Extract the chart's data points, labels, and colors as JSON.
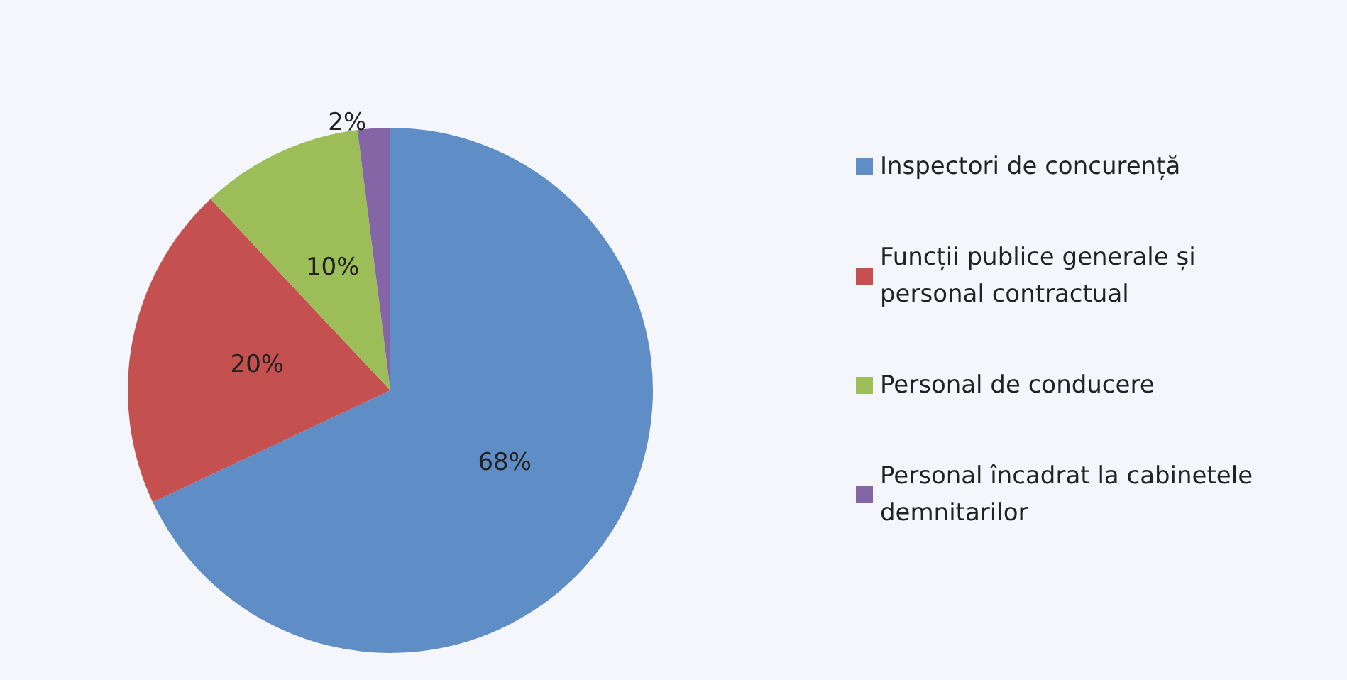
{
  "chart_data": {
    "type": "pie",
    "categories": [
      "Inspectori de concurență",
      "Funcții publice generale și personal contractual",
      "Personal de conducere",
      "Personal încadrat la cabinetele demnitarilor"
    ],
    "values": [
      68,
      20,
      10,
      2
    ],
    "colors": [
      "#5f8dc6",
      "#c4504f",
      "#9cbd58",
      "#8466a6"
    ],
    "value_labels": [
      "68%",
      "20%",
      "10%",
      "2%"
    ],
    "legend": "right"
  }
}
